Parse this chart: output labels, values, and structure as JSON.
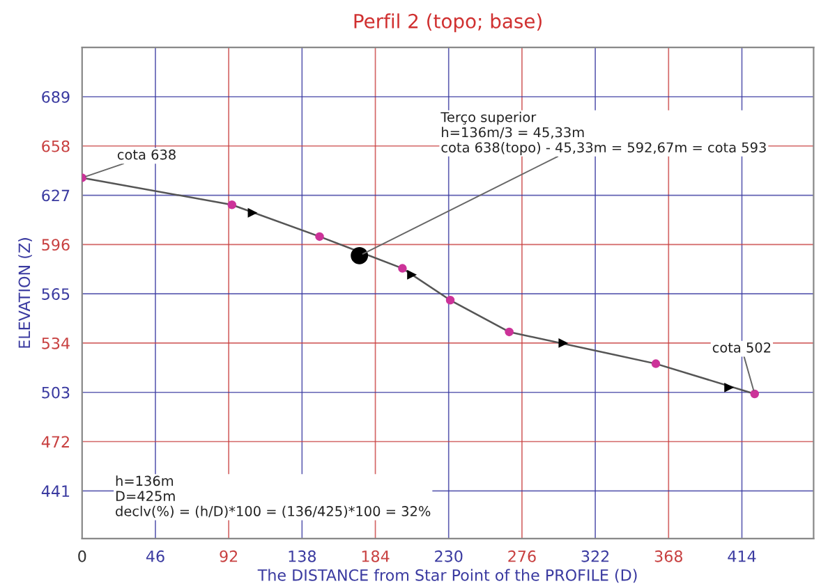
{
  "chart_data": {
    "type": "line",
    "title": "Perfil 2 (topo; base)",
    "xlabel": "The DISTANCE from Star Point of the PROFILE (D)",
    "ylabel": "ELEVATION (Z)",
    "xlim": [
      0,
      459
    ],
    "ylim": [
      411,
      720
    ],
    "xticks": [
      0,
      46,
      92,
      138,
      184,
      230,
      276,
      322,
      368,
      414
    ],
    "yticks": [
      441,
      472,
      503,
      534,
      565,
      596,
      627,
      658,
      689
    ],
    "grid": true,
    "legend": false,
    "series": [
      {
        "color": "#cc3399",
        "marker": "circle",
        "line_style": "solid",
        "x": [
          0,
          94,
          149,
          201,
          231,
          268,
          360,
          422
        ],
        "values": [
          638,
          621,
          601,
          581,
          561,
          541,
          521,
          502
        ]
      },
      {
        "type": "scatter",
        "color": "#000000",
        "marker": "triangle",
        "x": [
          107,
          207,
          302,
          406
        ],
        "values": [
          616,
          577,
          534,
          506
        ]
      },
      {
        "type": "scatter",
        "color": "#000000",
        "marker": "circle",
        "x": [
          174
        ],
        "values": [
          589
        ]
      }
    ],
    "annotations": [
      {
        "text": "cota 638",
        "x": 0,
        "y": 638
      },
      {
        "text": "Terço superior\nh=136m/3 = 45,33m\ncota 638(topo) - 45,33m = 592,67m = cota 593",
        "x": 174,
        "y": 589
      },
      {
        "text": "cota 502",
        "x": 422,
        "y": 502
      },
      "h=136m\nD=425m\ndeclv(%) = (h/D)*100 = (136/425)*100 = 32%"
    ]
  }
}
